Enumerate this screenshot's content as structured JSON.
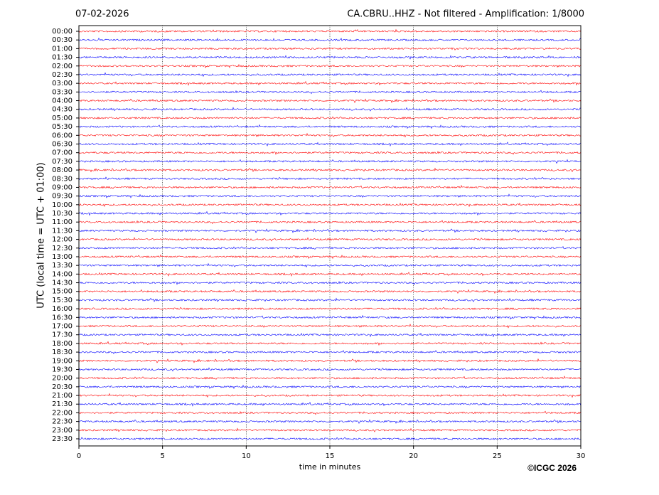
{
  "chart_data": {
    "type": "helicorder",
    "date": "07-02-2026",
    "title": "CA.CBRU..HHZ - Not filtered - Amplification: 1/8000",
    "ylabel": "UTC (local time = UTC + 01:00)",
    "xlabel": "time in minutes",
    "footer": "©ICGC 2026",
    "categories": [
      "00:00",
      "00:30",
      "01:00",
      "01:30",
      "02:00",
      "02:30",
      "03:00",
      "03:30",
      "04:00",
      "04:30",
      "05:00",
      "05:30",
      "06:00",
      "06:30",
      "07:00",
      "07:30",
      "08:00",
      "08:30",
      "09:00",
      "09:30",
      "10:00",
      "10:30",
      "11:00",
      "11:30",
      "12:00",
      "12:30",
      "13:00",
      "13:30",
      "14:00",
      "14:30",
      "15:00",
      "15:30",
      "16:00",
      "16:30",
      "17:00",
      "17:30",
      "18:00",
      "18:30",
      "19:00",
      "19:30",
      "20:00",
      "20:30",
      "21:00",
      "21:30",
      "22:00",
      "22:30",
      "23:00",
      "23:30"
    ],
    "colors": [
      "#ff0000",
      "#0000ff"
    ],
    "xlim": [
      0,
      30
    ],
    "xticks": [
      0,
      5,
      10,
      15,
      20,
      25,
      30
    ],
    "grid": true
  }
}
